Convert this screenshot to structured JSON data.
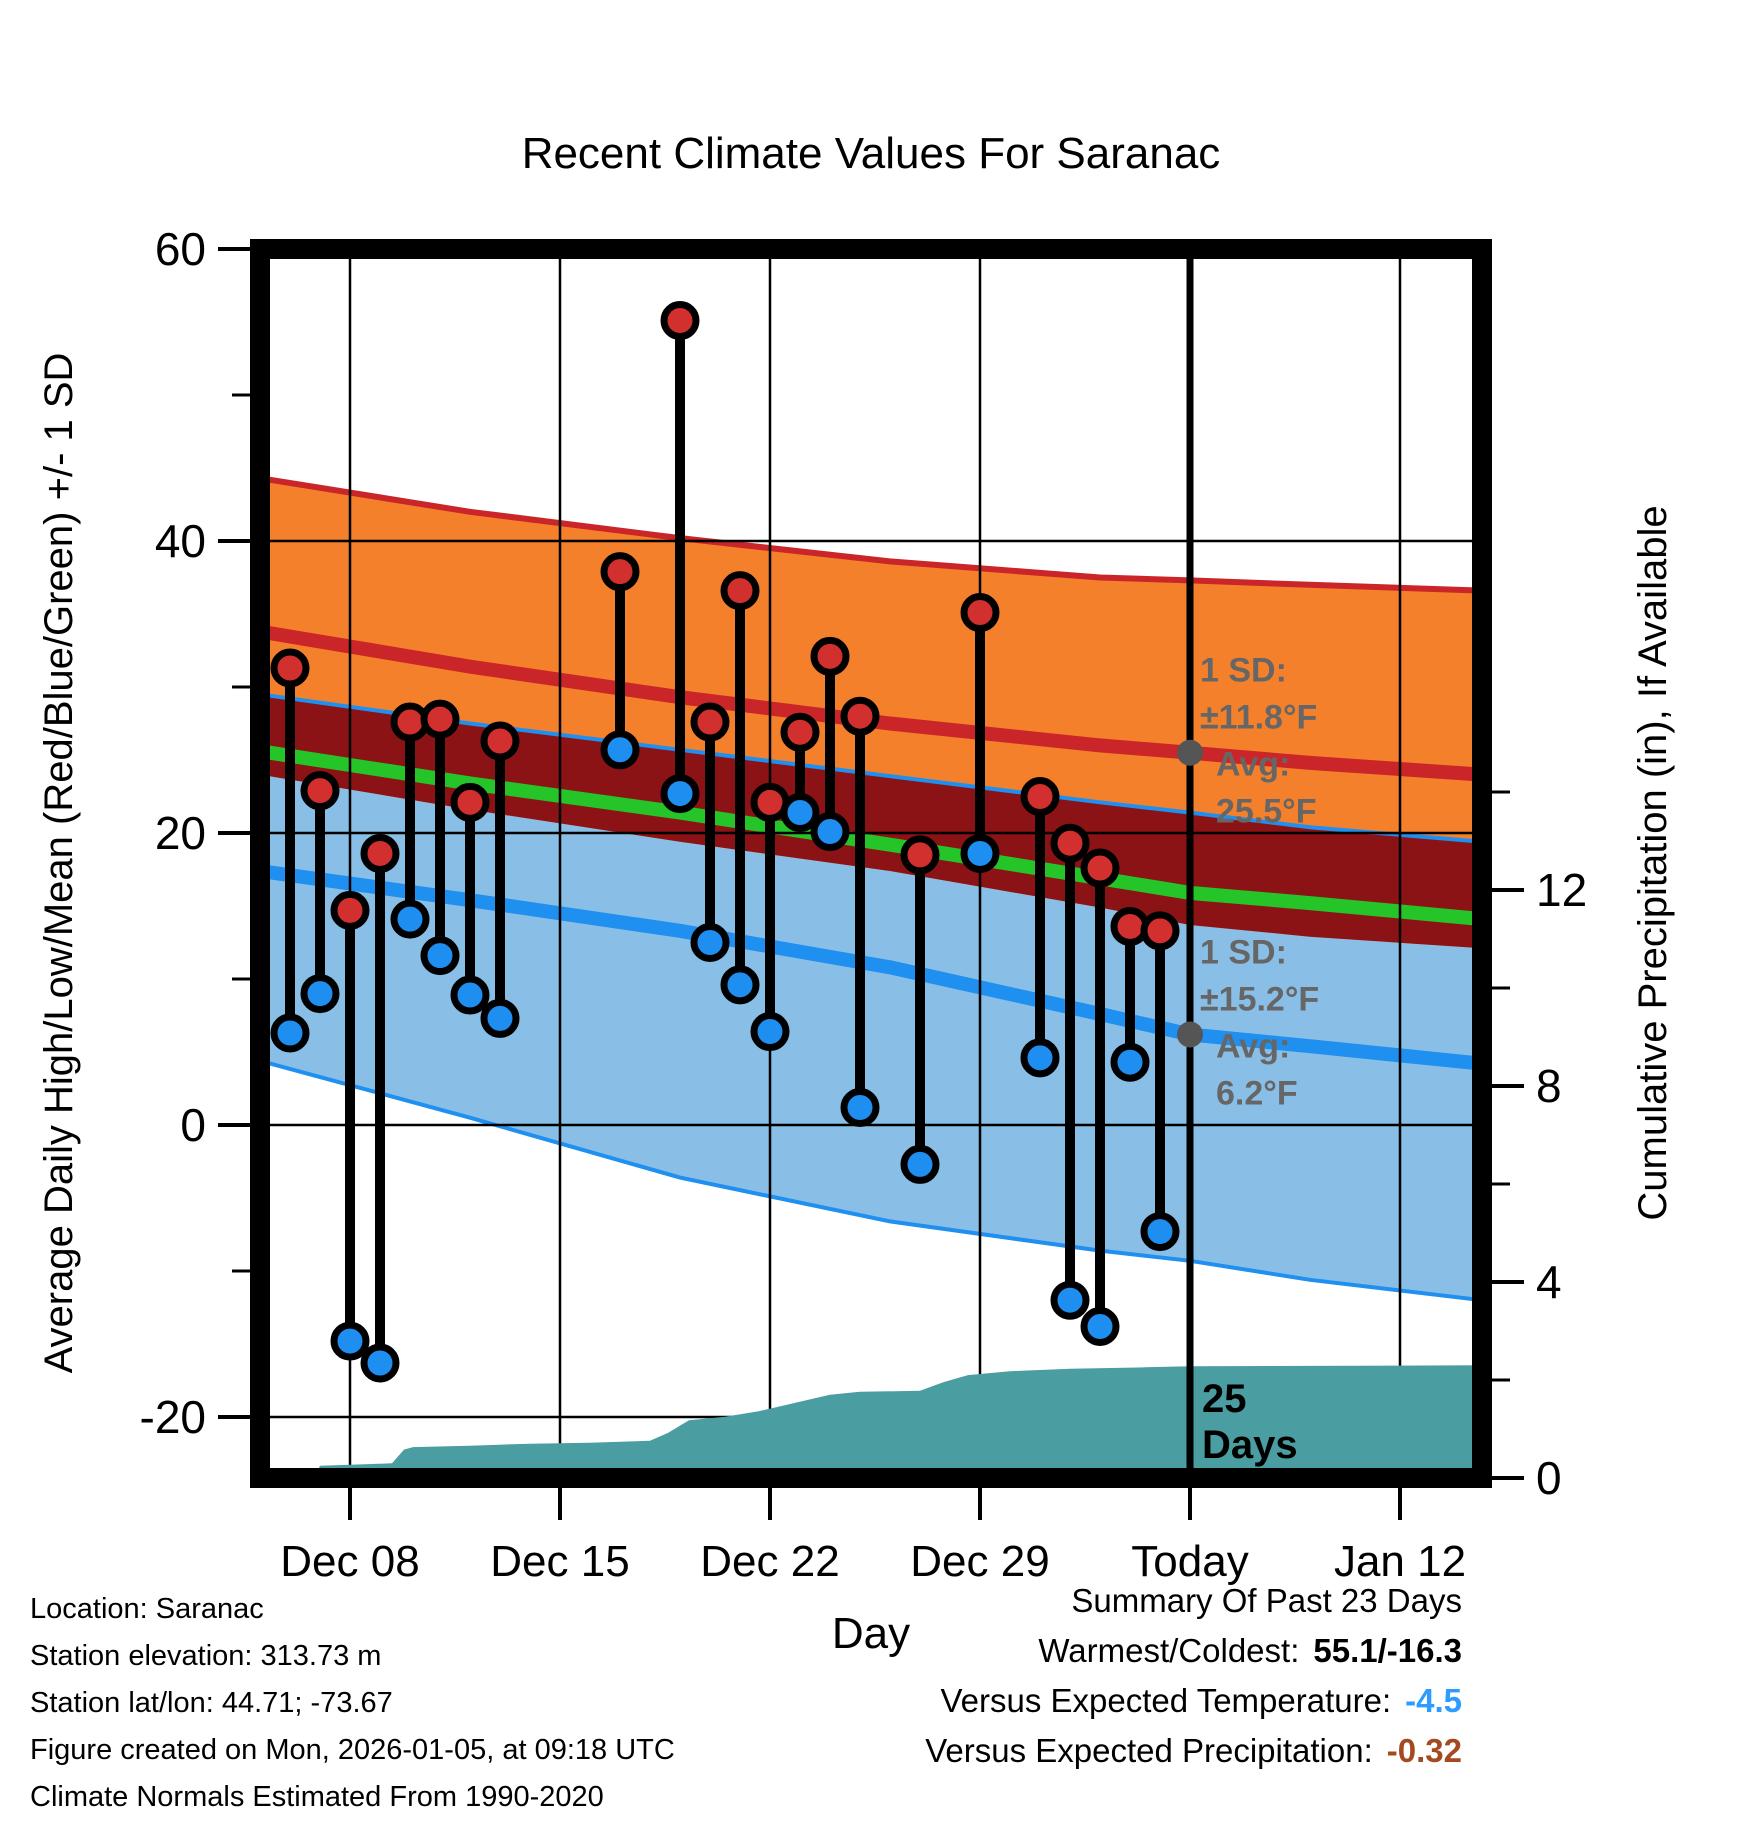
{
  "title": "Recent Climate Values For Saranac",
  "chart_data": {
    "type": "composite",
    "subtype": "climate-stem-chart with normals bands, area precipitation",
    "title": "Recent Climate Values For Saranac",
    "x_axis": {
      "label": "Day",
      "start_date_day0": "Dec 05",
      "domain_days": [
        0,
        40.73
      ],
      "ticks": [
        {
          "label": "Dec 08",
          "day": 3
        },
        {
          "label": "Dec 15",
          "day": 10
        },
        {
          "label": "Dec 22",
          "day": 17
        },
        {
          "label": "Dec 29",
          "day": 24
        },
        {
          "label": "Today",
          "day": 31
        },
        {
          "label": "Jan 12",
          "day": 38
        }
      ]
    },
    "y_temperature_axis": {
      "label": "Average Daily High/Low/Mean (Red/Blue/Green) +/- 1 SD",
      "units": "°F",
      "range": [
        -24.2,
        60
      ],
      "major_ticks": [
        60,
        40,
        20,
        0,
        -20
      ],
      "minor_ticks": [
        50,
        30,
        10,
        -10
      ],
      "gridline_values": [
        40,
        20,
        0,
        -20
      ]
    },
    "y_precip_axis": {
      "label": "Cumulative Precipitation (in), If Available",
      "units": "in",
      "range": [
        0,
        25.1
      ],
      "major_ticks": [
        12,
        8,
        4,
        0
      ],
      "minor_ticks": [
        14,
        10,
        6,
        2
      ]
    },
    "normals_bands": {
      "anchor_days": [
        0,
        7,
        14,
        21,
        28,
        31,
        35,
        40.73
      ],
      "high_plus_1sd": [
        44.3,
        42.0,
        40.2,
        38.6,
        37.5,
        37.3,
        37.0,
        36.6
      ],
      "high_avg": [
        33.8,
        31.4,
        29.3,
        27.5,
        26.0,
        25.5,
        24.8,
        24.0
      ],
      "low_plus_1sd": [
        29.5,
        27.5,
        25.7,
        23.9,
        22.1,
        21.4,
        20.4,
        19.4
      ],
      "mean": [
        25.6,
        23.4,
        21.4,
        19.2,
        16.9,
        15.9,
        15.2,
        14.1
      ],
      "high_minus_1sd": [
        24.0,
        21.6,
        19.4,
        17.4,
        14.9,
        13.7,
        12.9,
        12.1
      ],
      "low_avg": [
        17.4,
        15.4,
        13.3,
        10.8,
        7.6,
        6.2,
        5.4,
        4.2
      ],
      "low_minus_1sd": [
        4.4,
        0.5,
        -3.6,
        -6.6,
        -8.6,
        -9.3,
        -10.6,
        -12.0
      ]
    },
    "daily_observations": [
      {
        "date": "Dec 06",
        "day": 1,
        "high": 31.3,
        "low": 6.3
      },
      {
        "date": "Dec 07",
        "day": 2,
        "high": 22.9,
        "low": 9.0
      },
      {
        "date": "Dec 08",
        "day": 3,
        "high": 14.7,
        "low": -14.8
      },
      {
        "date": "Dec 09",
        "day": 4,
        "high": 18.6,
        "low": -16.3
      },
      {
        "date": "Dec 10",
        "day": 5,
        "high": 27.6,
        "low": 14.1
      },
      {
        "date": "Dec 11",
        "day": 6,
        "high": 27.8,
        "low": 11.6
      },
      {
        "date": "Dec 12",
        "day": 7,
        "high": 22.1,
        "low": 8.9
      },
      {
        "date": "Dec 13",
        "day": 8,
        "high": 26.3,
        "low": 7.3
      },
      {
        "date": "Dec 17",
        "day": 12,
        "high": 37.9,
        "low": 25.7
      },
      {
        "date": "Dec 19",
        "day": 14,
        "high": 55.1,
        "low": 22.7
      },
      {
        "date": "Dec 20",
        "day": 15,
        "high": 27.6,
        "low": 12.5
      },
      {
        "date": "Dec 21",
        "day": 16,
        "high": 36.6,
        "low": 9.6
      },
      {
        "date": "Dec 22",
        "day": 17,
        "high": 22.1,
        "low": 6.4
      },
      {
        "date": "Dec 23",
        "day": 18,
        "high": 26.9,
        "low": 21.4
      },
      {
        "date": "Dec 24",
        "day": 19,
        "high": 32.1,
        "low": 20.1
      },
      {
        "date": "Dec 25",
        "day": 20,
        "high": 28.0,
        "low": 1.2
      },
      {
        "date": "Dec 27",
        "day": 22,
        "high": 18.5,
        "low": -2.7
      },
      {
        "date": "Dec 29",
        "day": 24,
        "high": 35.1,
        "low": 18.6
      },
      {
        "date": "Dec 31",
        "day": 26,
        "high": 22.5,
        "low": 4.6
      },
      {
        "date": "Jan 01",
        "day": 27,
        "high": 19.3,
        "low": -12.0
      },
      {
        "date": "Jan 02",
        "day": 28,
        "high": 17.6,
        "low": -13.8
      },
      {
        "date": "Jan 03",
        "day": 29,
        "high": 13.6,
        "low": 4.3
      },
      {
        "date": "Jan 04",
        "day": 30,
        "high": 13.3,
        "low": -7.3
      }
    ],
    "precipitation_cumulative_in": [
      [
        1.8,
        0.0
      ],
      [
        2.0,
        0.25
      ],
      [
        3.5,
        0.28
      ],
      [
        4.4,
        0.3
      ],
      [
        4.8,
        0.58
      ],
      [
        5.1,
        0.63
      ],
      [
        7.0,
        0.66
      ],
      [
        9.0,
        0.7
      ],
      [
        11.0,
        0.72
      ],
      [
        13.0,
        0.76
      ],
      [
        13.6,
        0.92
      ],
      [
        14.3,
        1.18
      ],
      [
        15.5,
        1.25
      ],
      [
        16.6,
        1.36
      ],
      [
        17.6,
        1.5
      ],
      [
        19.0,
        1.7
      ],
      [
        20.0,
        1.76
      ],
      [
        22.0,
        1.78
      ],
      [
        22.8,
        1.96
      ],
      [
        23.6,
        2.1
      ],
      [
        25.0,
        2.18
      ],
      [
        27.0,
        2.23
      ],
      [
        29.5,
        2.26
      ],
      [
        31.0,
        2.28
      ],
      [
        40.73,
        2.3
      ]
    ],
    "precip_label_lines": [
      "25",
      "Days"
    ],
    "today_line_day": 31,
    "annotations": [
      {
        "lines": [
          "1 SD:",
          "±11.8°F",
          "Avg:",
          "25.5°F"
        ],
        "dot_temp": 25.5
      },
      {
        "lines": [
          "1 SD:",
          "±15.2°F",
          "Avg:",
          "6.2°F"
        ],
        "dot_temp": 6.2
      }
    ]
  },
  "footer": {
    "info_lines": [
      "Location: Saranac",
      "Station elevation: 313.73 m",
      "Station lat/lon: 44.71; -73.67",
      "Figure created on Mon, 2026-01-05, at 09:18 UTC",
      "Climate Normals Estimated From 1990-2020"
    ],
    "summary": {
      "title": "Summary Of Past 23 Days",
      "rows": [
        {
          "label": "Warmest/Coldest:",
          "value": "55.1/-16.3",
          "value_color": "#000000"
        },
        {
          "label": "Versus Expected Temperature:",
          "value": "-4.5",
          "value_color": "#2D9BFF"
        },
        {
          "label": "Versus Expected Precipitation:",
          "value": "-0.32",
          "value_color": "#A34A21"
        }
      ]
    }
  },
  "colors": {
    "orange_band": "#F5802C",
    "red_line": "#CA2528",
    "maroon_band": "#8C1315",
    "green_line": "#25C428",
    "light_blue_band": "#89BFE6",
    "blue_line": "#1F8FF0",
    "high_dot": "#D22F2F",
    "low_dot": "#1F8EF1",
    "precip_fill": "#4A9DA1",
    "annotation_gray": "#666666",
    "gray_dot": "#555555",
    "grid": "#000000",
    "frame": "#000000"
  }
}
